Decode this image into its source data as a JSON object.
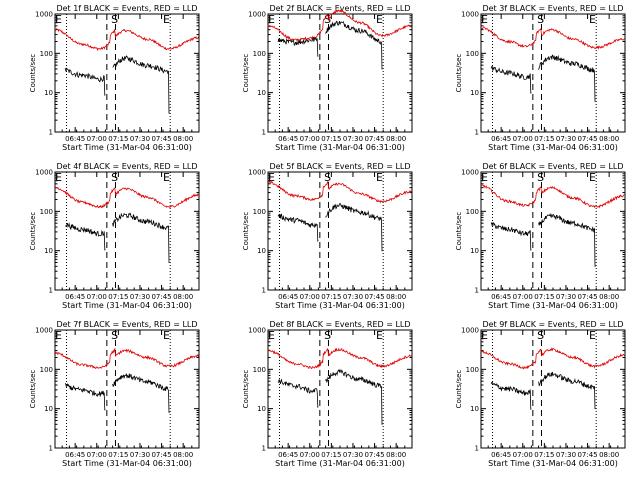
{
  "chart_data": {
    "type": "line",
    "x_tick_labels": [
      "06:45",
      "07:00",
      "07:15",
      "07:30",
      "07:45",
      "08:00"
    ],
    "x_tick_minutes": [
      45,
      60,
      75,
      90,
      105,
      120
    ],
    "x_range_minutes": [
      31,
      131
    ],
    "xlabel": "Start Time (31-Mar-04 06:31:00)",
    "ylabel": "Counts/sec",
    "y_log": true,
    "ylim": [
      1,
      1000
    ],
    "y_tick_labels": [
      "1",
      "10",
      "100",
      "1000"
    ],
    "markers": {
      "E_minutes": [
        31,
        106
      ],
      "S_minutes": 70,
      "dotted_minutes": [
        39,
        111
      ],
      "dashed_minutes": [
        67,
        73
      ]
    },
    "marker_labels": {
      "E": "E",
      "S": "S"
    },
    "series_colors": {
      "events": "#000000",
      "lld": "#e00000"
    },
    "panels": [
      {
        "title": "Det 1f BLACK = Events, RED = LLD",
        "lld": [
          400,
          170,
          130,
          380,
          230,
          130,
          250
        ],
        "events": [
          45,
          28,
          22,
          75,
          50,
          35,
          25
        ],
        "drop_end": 3
      },
      {
        "title": "Det 2f BLACK = Events, RED = LLD",
        "lld": [
          500,
          220,
          250,
          1200,
          600,
          280,
          500
        ],
        "events": [
          230,
          190,
          220,
          600,
          380,
          200,
          160
        ],
        "drop_end": 40
      },
      {
        "title": "Det 3f BLACK = Events, RED = LLD",
        "lld": [
          450,
          200,
          150,
          400,
          230,
          140,
          230
        ],
        "events": [
          50,
          32,
          25,
          80,
          55,
          38,
          28
        ],
        "drop_end": 6
      },
      {
        "title": "Det 4f BLACK = Events, RED = LLD",
        "lld": [
          400,
          170,
          130,
          380,
          230,
          130,
          260
        ],
        "events": [
          55,
          35,
          27,
          80,
          55,
          38,
          28
        ],
        "drop_end": 5
      },
      {
        "title": "Det 5f BLACK = Events, RED = LLD",
        "lld": [
          550,
          250,
          200,
          500,
          280,
          180,
          320
        ],
        "events": [
          90,
          60,
          45,
          140,
          95,
          65,
          45
        ],
        "drop_end": 10
      },
      {
        "title": "Det 6f BLACK = Events, RED = LLD",
        "lld": [
          450,
          180,
          140,
          400,
          220,
          130,
          250
        ],
        "events": [
          55,
          35,
          27,
          75,
          50,
          34,
          25
        ],
        "drop_end": 4
      },
      {
        "title": "Det 7f BLACK = Events, RED = LLD",
        "lld": [
          260,
          130,
          110,
          300,
          200,
          120,
          220
        ],
        "events": [
          45,
          30,
          24,
          70,
          48,
          32,
          22
        ],
        "drop_end": 8
      },
      {
        "title": "Det 8f BLACK = Events, RED = LLD",
        "lld": [
          300,
          140,
          110,
          320,
          200,
          120,
          220
        ],
        "events": [
          60,
          38,
          28,
          85,
          55,
          38,
          26
        ],
        "drop_end": 4
      },
      {
        "title": "Det 9f BLACK = Events, RED = LLD",
        "lld": [
          280,
          140,
          110,
          320,
          200,
          120,
          230
        ],
        "events": [
          50,
          32,
          25,
          75,
          50,
          35,
          24
        ],
        "drop_end": 10
      }
    ]
  }
}
